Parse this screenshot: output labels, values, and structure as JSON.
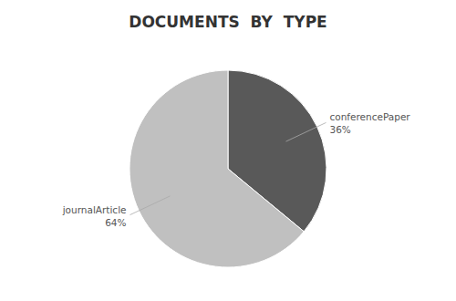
{
  "chart_data": {
    "type": "pie",
    "title": "DOCUMENTS  BY  TYPE",
    "categories": [
      "conferencePaper",
      "journalArticle"
    ],
    "values": [
      36,
      64
    ],
    "value_labels": [
      "36%",
      "64%"
    ],
    "colors": [
      "#595959",
      "#c0c0c0"
    ],
    "data_labels": true
  }
}
